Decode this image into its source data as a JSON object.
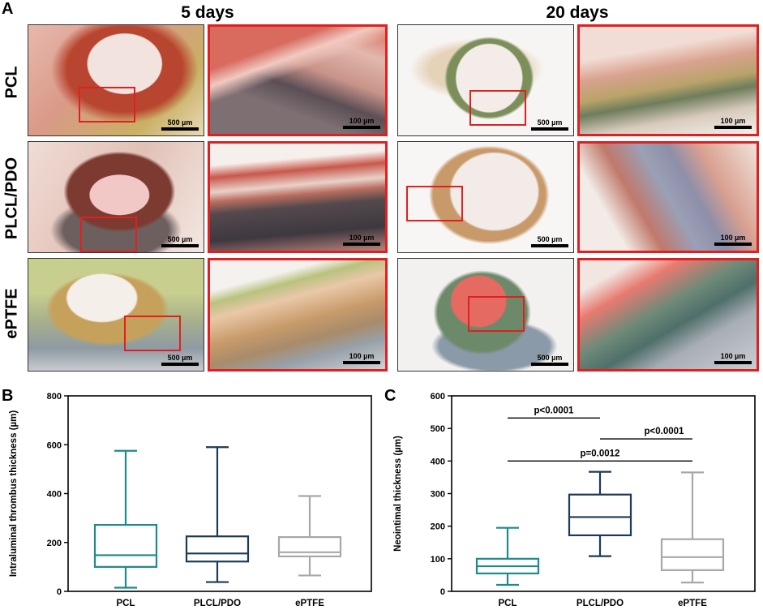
{
  "panel_a": {
    "letter": "A",
    "columns": [
      "5 days",
      "20 days"
    ],
    "rows": [
      "PCL",
      "PLCL/PDO",
      "ePTFE"
    ],
    "scale_overview": "500 µm",
    "scale_zoom": "100 µm"
  },
  "chart_data": [
    {
      "panel": "B",
      "type": "boxplot",
      "ylabel": "Intraluminal thrombus thickness (µm)",
      "ylim": [
        0,
        800
      ],
      "yticks": [
        0,
        200,
        400,
        600,
        800
      ],
      "categories": [
        "PCL",
        "PLCL/PDO",
        "ePTFE"
      ],
      "colors": [
        "#1e8a8a",
        "#1c3a55",
        "#a8a8a8"
      ],
      "boxes": [
        {
          "min": 15,
          "q1": 100,
          "median": 148,
          "q3": 272,
          "max": 575
        },
        {
          "min": 38,
          "q1": 122,
          "median": 155,
          "q3": 225,
          "max": 590
        },
        {
          "min": 65,
          "q1": 143,
          "median": 160,
          "q3": 222,
          "max": 390
        }
      ]
    },
    {
      "panel": "C",
      "type": "boxplot",
      "ylabel": "Neointimal thickness (µm)",
      "ylim": [
        0,
        600
      ],
      "yticks": [
        0,
        100,
        200,
        300,
        400,
        500,
        600
      ],
      "categories": [
        "PCL",
        "PLCL/PDO",
        "ePTFE"
      ],
      "colors": [
        "#1e8a8a",
        "#1c3a55",
        "#a8a8a8"
      ],
      "boxes": [
        {
          "min": 20,
          "q1": 55,
          "median": 77,
          "q3": 100,
          "max": 195
        },
        {
          "min": 108,
          "q1": 172,
          "median": 228,
          "q3": 297,
          "max": 367
        },
        {
          "min": 27,
          "q1": 65,
          "median": 105,
          "q3": 160,
          "max": 365
        }
      ],
      "comparisons": [
        {
          "from": 0,
          "to": 1,
          "y": 532,
          "label": "p<0.0001"
        },
        {
          "from": 1,
          "to": 2,
          "y": 468,
          "label": "p<0.0001"
        },
        {
          "from": 0,
          "to": 2,
          "y": 400,
          "label": "p=0.0012"
        }
      ]
    }
  ]
}
